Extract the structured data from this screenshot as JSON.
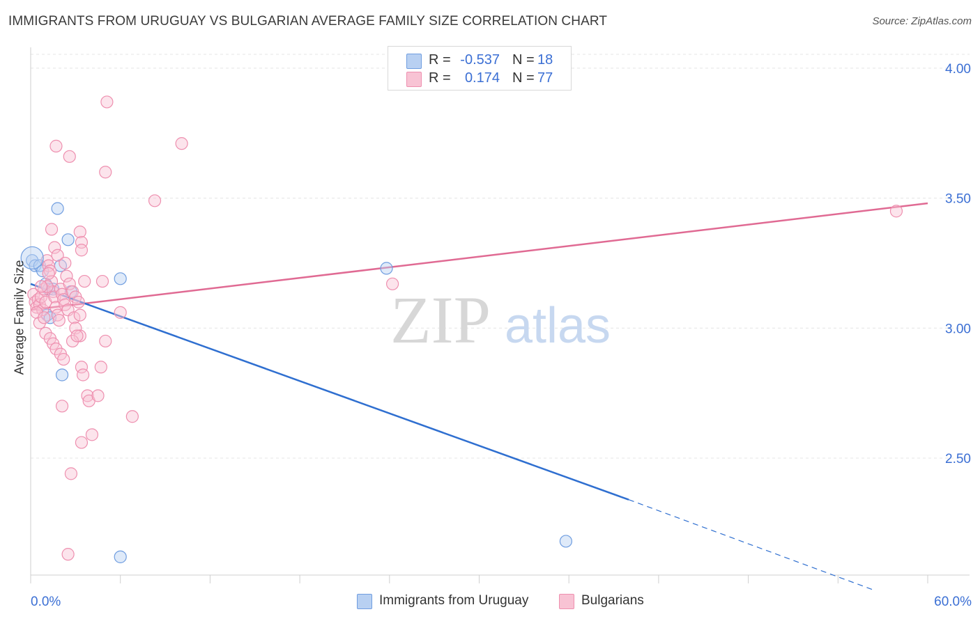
{
  "title": "IMMIGRANTS FROM URUGUAY VS BULGARIAN AVERAGE FAMILY SIZE CORRELATION CHART",
  "source": "Source: ZipAtlas.com",
  "watermark": {
    "zip": "ZIP",
    "atlas": "atlas"
  },
  "legend": {
    "r_label": "R =",
    "n_label": "N =",
    "series1": {
      "r": "-0.537",
      "n": "18"
    },
    "series2": {
      "r": "0.174",
      "n": "77"
    }
  },
  "chart_data": {
    "type": "scatter",
    "title": "IMMIGRANTS FROM URUGUAY VS BULGARIAN AVERAGE FAMILY SIZE CORRELATION CHART",
    "xlabel": "",
    "ylabel": "Average Family Size",
    "xlim": [
      0,
      60
    ],
    "ylim": [
      2.05,
      4.08
    ],
    "x_tick_labels": [
      "0.0%",
      "60.0%"
    ],
    "y_ticks": [
      2.5,
      3.0,
      3.5,
      4.0
    ],
    "y_tick_labels": [
      "2.50",
      "3.00",
      "3.50",
      "4.00"
    ],
    "grid": true,
    "series": [
      {
        "name": "Immigrants from Uruguay",
        "color": "#6f9de0",
        "fill": "#b8d0f2",
        "line_color": "#2f6fd0",
        "trend": {
          "x0": 0,
          "y0": 3.17,
          "x1": 40,
          "y1": 2.34,
          "dash_to_x": 56.5,
          "dash_to_y": 1.99
        },
        "points": [
          [
            0.1,
            3.26
          ],
          [
            0.3,
            3.24
          ],
          [
            0.6,
            3.24
          ],
          [
            0.8,
            3.22
          ],
          [
            1.0,
            3.17
          ],
          [
            1.2,
            3.15
          ],
          [
            1.5,
            3.15
          ],
          [
            1.8,
            3.46
          ],
          [
            2.0,
            3.24
          ],
          [
            2.5,
            3.34
          ],
          [
            2.7,
            3.14
          ],
          [
            1.1,
            3.05
          ],
          [
            1.3,
            3.04
          ],
          [
            2.1,
            2.82
          ],
          [
            6.0,
            3.19
          ],
          [
            23.8,
            3.23
          ],
          [
            35.8,
            2.18
          ],
          [
            6.0,
            2.12
          ]
        ]
      },
      {
        "name": "Bulgarians",
        "color": "#ee8faf",
        "fill": "#f8c3d4",
        "line_color": "#e06a93",
        "trend": {
          "x0": 0,
          "y0": 3.07,
          "x1": 60,
          "y1": 3.48
        },
        "points": [
          [
            0.2,
            3.13
          ],
          [
            0.3,
            3.1
          ],
          [
            0.4,
            3.08
          ],
          [
            0.5,
            3.11
          ],
          [
            0.6,
            3.09
          ],
          [
            0.7,
            3.12
          ],
          [
            0.8,
            3.07
          ],
          [
            0.9,
            3.15
          ],
          [
            1.0,
            3.1
          ],
          [
            1.1,
            3.26
          ],
          [
            1.2,
            3.24
          ],
          [
            1.3,
            3.22
          ],
          [
            1.4,
            3.18
          ],
          [
            1.5,
            3.14
          ],
          [
            1.6,
            3.12
          ],
          [
            1.7,
            3.08
          ],
          [
            1.8,
            3.05
          ],
          [
            1.9,
            3.03
          ],
          [
            2.0,
            3.15
          ],
          [
            2.1,
            3.13
          ],
          [
            2.2,
            3.11
          ],
          [
            2.3,
            3.09
          ],
          [
            0.4,
            3.06
          ],
          [
            0.6,
            3.02
          ],
          [
            1.0,
            2.98
          ],
          [
            1.3,
            2.96
          ],
          [
            1.5,
            2.94
          ],
          [
            1.7,
            2.92
          ],
          [
            2.0,
            2.9
          ],
          [
            2.2,
            2.88
          ],
          [
            1.4,
            3.38
          ],
          [
            1.6,
            3.31
          ],
          [
            1.8,
            3.28
          ],
          [
            2.4,
            3.2
          ],
          [
            2.6,
            3.17
          ],
          [
            2.8,
            3.14
          ],
          [
            3.0,
            3.12
          ],
          [
            3.2,
            3.1
          ],
          [
            2.5,
            3.07
          ],
          [
            2.9,
            3.04
          ],
          [
            3.0,
            3.0
          ],
          [
            3.3,
            2.97
          ],
          [
            1.7,
            3.7
          ],
          [
            2.6,
            3.66
          ],
          [
            3.3,
            3.37
          ],
          [
            3.4,
            3.33
          ],
          [
            3.4,
            3.3
          ],
          [
            3.6,
            3.18
          ],
          [
            3.3,
            3.05
          ],
          [
            3.4,
            2.85
          ],
          [
            3.5,
            2.82
          ],
          [
            3.8,
            2.74
          ],
          [
            3.9,
            2.72
          ],
          [
            4.5,
            2.74
          ],
          [
            4.7,
            2.85
          ],
          [
            5.0,
            2.95
          ],
          [
            6.0,
            3.06
          ],
          [
            3.4,
            2.56
          ],
          [
            4.1,
            2.59
          ],
          [
            6.8,
            2.66
          ],
          [
            2.1,
            2.7
          ],
          [
            2.7,
            2.44
          ],
          [
            2.5,
            2.13
          ],
          [
            5.1,
            3.87
          ],
          [
            5.0,
            3.6
          ],
          [
            8.3,
            3.49
          ],
          [
            10.1,
            3.71
          ],
          [
            24.2,
            3.17
          ],
          [
            57.9,
            3.45
          ],
          [
            4.8,
            3.18
          ],
          [
            1.1,
            3.16
          ],
          [
            2.8,
            2.95
          ],
          [
            1.2,
            3.21
          ],
          [
            0.9,
            3.04
          ],
          [
            2.3,
            3.25
          ],
          [
            3.1,
            2.97
          ],
          [
            0.7,
            3.16
          ]
        ]
      }
    ]
  },
  "bottom_legend": {
    "series1_label": "Immigrants from Uruguay",
    "series2_label": "Bulgarians"
  }
}
